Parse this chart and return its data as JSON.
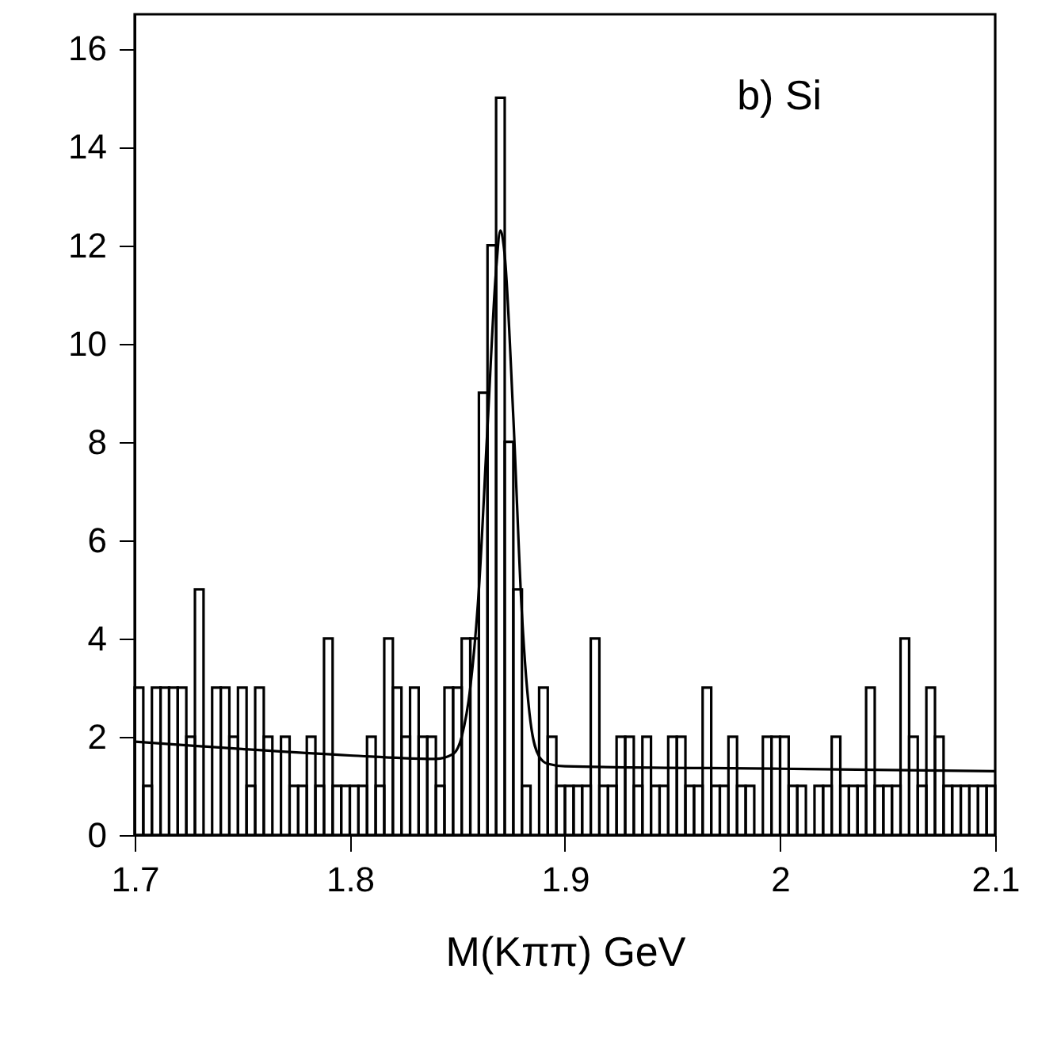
{
  "chart_data": {
    "type": "histogram",
    "xlabel": "M(Kππ) GeV",
    "annotations": [
      "b) Si"
    ],
    "bins": [
      1.7,
      1.704,
      1.708,
      1.712,
      1.716,
      1.72,
      1.724,
      1.728,
      1.732,
      1.736,
      1.74,
      1.744,
      1.748,
      1.752,
      1.756,
      1.76,
      1.764,
      1.768,
      1.772,
      1.776,
      1.78,
      1.784,
      1.788,
      1.792,
      1.796,
      1.8,
      1.804,
      1.808,
      1.812,
      1.816,
      1.82,
      1.824,
      1.828,
      1.832,
      1.836,
      1.84,
      1.844,
      1.848,
      1.852,
      1.856,
      1.86,
      1.864,
      1.868,
      1.872,
      1.876,
      1.88,
      1.884,
      1.888,
      1.892,
      1.896,
      1.9,
      1.904,
      1.908,
      1.912,
      1.916,
      1.92,
      1.924,
      1.928,
      1.932,
      1.936,
      1.94,
      1.944,
      1.948,
      1.952,
      1.956,
      1.96,
      1.964,
      1.968,
      1.972,
      1.976,
      1.98,
      1.984,
      1.988,
      1.992,
      1.996,
      2,
      2.004,
      2.008,
      2.012,
      2.016,
      2.02,
      2.024,
      2.028,
      2.032,
      2.036,
      2.04,
      2.044,
      2.048,
      2.052,
      2.056,
      2.06,
      2.064,
      2.068,
      2.072,
      2.076,
      2.08,
      2.084,
      2.088,
      2.092,
      2.096,
      2.1
    ],
    "series": [
      {
        "color": "#000000",
        "values": [
          3,
          1,
          3,
          3,
          3,
          3,
          2,
          5,
          0,
          3,
          3,
          2,
          3,
          1,
          3,
          2,
          0,
          2,
          1,
          1,
          2,
          1,
          4,
          1,
          1,
          1,
          1,
          2,
          1,
          4,
          3,
          2,
          3,
          2,
          2,
          1,
          3,
          3,
          4,
          4,
          9,
          12,
          15,
          8,
          5,
          1,
          0,
          3,
          2,
          1,
          1,
          1,
          1,
          4,
          1,
          1,
          2,
          2,
          1,
          2,
          1,
          1,
          2,
          2,
          1,
          1,
          3,
          1,
          1,
          2,
          1,
          1,
          0,
          2,
          2,
          2,
          1,
          1,
          0,
          1,
          1,
          2,
          1,
          1,
          1,
          3,
          1,
          1,
          1,
          4,
          2,
          1,
          3,
          2,
          1,
          1,
          1,
          1,
          1,
          1
        ]
      },
      {
        "type": "line",
        "color": "#000000",
        "x": [
          1.7,
          1.75,
          1.8,
          1.84,
          1.848,
          1.852,
          1.856,
          1.86,
          1.864,
          1.868,
          1.87,
          1.872,
          1.876,
          1.88,
          1.884,
          1.888,
          1.892,
          1.9,
          2,
          2.1
        ],
        "values": [
          1.9,
          1.75,
          1.62,
          1.55,
          1.65,
          2,
          3,
          5,
          8.3,
          11.5,
          12.3,
          11.8,
          8.5,
          4.5,
          2.3,
          1.6,
          1.45,
          1.4,
          1.35,
          1.3
        ]
      }
    ],
    "xlim": [
      1.7,
      2.1
    ],
    "xticks": [
      1.7,
      1.8,
      1.9,
      2,
      2.1
    ],
    "ylim": [
      0,
      16.7
    ],
    "yticks": [
      0,
      2,
      4,
      6,
      8,
      10,
      12,
      14,
      16
    ],
    "grid": false
  }
}
